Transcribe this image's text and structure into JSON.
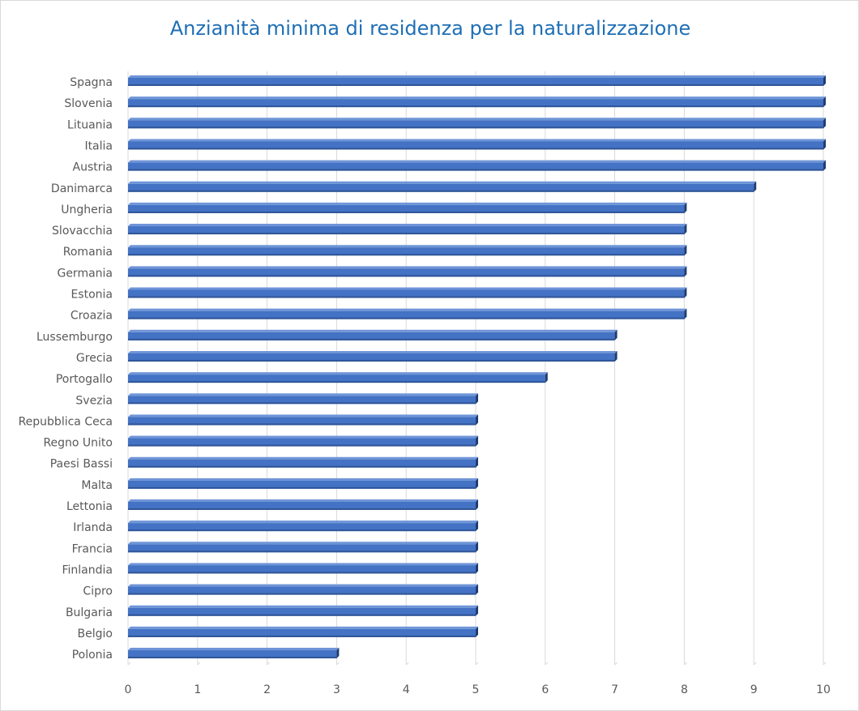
{
  "chart_data": {
    "type": "bar",
    "orientation": "horizontal",
    "title": "Anzianità minima di residenza per la naturalizzazione",
    "categories": [
      "Spagna",
      "Slovenia",
      "Lituania",
      "Italia",
      "Austria",
      "Danimarca",
      "Ungheria",
      "Slovacchia",
      "Romania",
      "Germania",
      "Estonia",
      "Croazia",
      "Lussemburgo",
      "Grecia",
      "Portogallo",
      "Svezia",
      "Repubblica Ceca",
      "Regno Unito",
      "Paesi Bassi",
      "Malta",
      "Lettonia",
      "Irlanda",
      "Francia",
      "Finlandia",
      "Cipro",
      "Bulgaria",
      "Belgio",
      "Polonia"
    ],
    "values": [
      10,
      10,
      10,
      10,
      10,
      9,
      8,
      8,
      8,
      8,
      8,
      8,
      7,
      7,
      6,
      5,
      5,
      5,
      5,
      5,
      5,
      5,
      5,
      5,
      5,
      5,
      5,
      3
    ],
    "xlim": [
      0,
      10
    ],
    "xticks": [
      "0",
      "1",
      "2",
      "3",
      "4",
      "5",
      "6",
      "7",
      "8",
      "9",
      "10"
    ],
    "grid": "vertical",
    "legend": "none",
    "bar_color": "#4472c4"
  }
}
